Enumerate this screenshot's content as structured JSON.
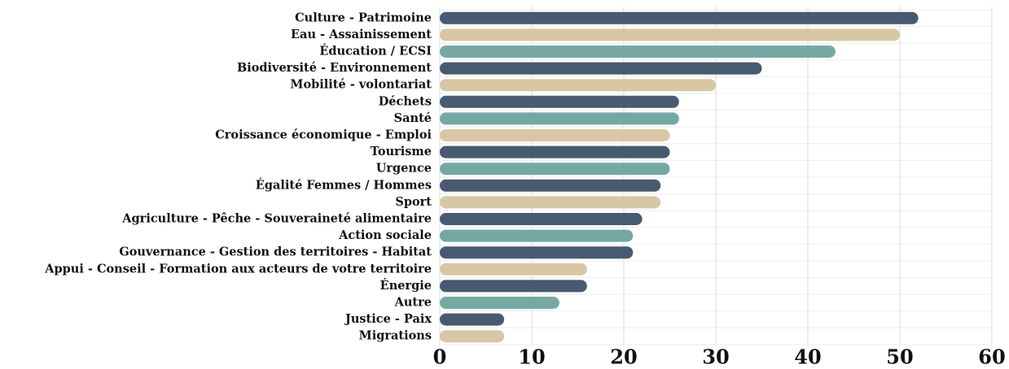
{
  "chart_data": {
    "type": "barh",
    "categories": [
      "Culture - Patrimoine",
      "Eau - Assainissement",
      "Éducation / ECSI",
      "Biodiversité - Environnement",
      "Mobilité - volontariat",
      "Déchets",
      "Santé",
      "Croissance économique - Emploi",
      "Tourisme",
      "Urgence",
      "Égalité Femmes / Hommes",
      "Sport",
      "Agriculture - Pêche - Souveraineté alimentaire",
      "Action sociale",
      "Gouvernance - Gestion des territoires - Habitat",
      "Appui - Conseil - Formation aux acteurs de votre territoire",
      "Énergie",
      "Autre",
      "Justice - Paix",
      "Migrations"
    ],
    "values": [
      52,
      50,
      43,
      35,
      30,
      26,
      26,
      25,
      25,
      25,
      24,
      24,
      22,
      21,
      21,
      16,
      16,
      13,
      7,
      7
    ],
    "colors": [
      "#475a70",
      "#d8c7a4",
      "#76a8a3",
      "#475a70",
      "#d8c7a4",
      "#475a70",
      "#76a8a3",
      "#d8c7a4",
      "#475a70",
      "#76a8a3",
      "#475a70",
      "#d8c7a4",
      "#475a70",
      "#76a8a3",
      "#475a70",
      "#d8c7a4",
      "#475a70",
      "#76a8a3",
      "#475a70",
      "#d8c7a4"
    ],
    "xlim": [
      0,
      60
    ],
    "xticks": [
      0,
      10,
      20,
      30,
      40,
      50,
      60
    ],
    "grid": true
  }
}
